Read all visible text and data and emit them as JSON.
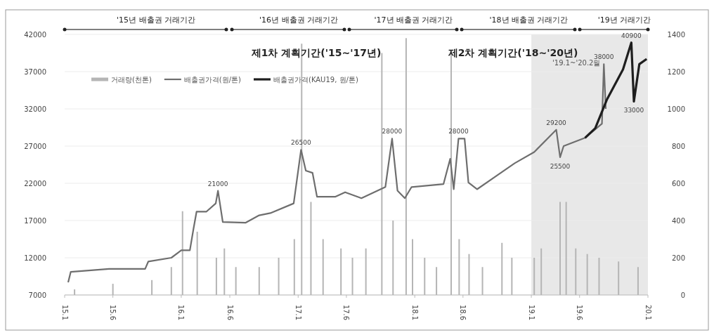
{
  "chart_data": {
    "type": "line",
    "legend": "top left",
    "grid": "y",
    "xlim": [
      "2015-01",
      "2020-01"
    ],
    "ylim": [
      7000,
      42000
    ],
    "y2lim": [
      0,
      1400
    ],
    "xticks": [
      {
        "value": "2015-01",
        "label": "15.1"
      },
      {
        "value": "2015-06",
        "label": "15.6"
      },
      {
        "value": "2016-01",
        "label": "16.1"
      },
      {
        "value": "2016-06",
        "label": "16.6"
      },
      {
        "value": "2017-01",
        "label": "17.1"
      },
      {
        "value": "2017-06",
        "label": "17.6"
      },
      {
        "value": "2018-01",
        "label": "18.1"
      },
      {
        "value": "2018-06",
        "label": "18.6"
      },
      {
        "value": "2019-01",
        "label": "19.1"
      },
      {
        "value": "2019-06",
        "label": "19.6"
      },
      {
        "value": "2020-01",
        "label": "20.1"
      }
    ],
    "yticks": [
      7000,
      12000,
      17000,
      22000,
      27000,
      32000,
      37000,
      42000
    ],
    "y2ticks": [
      0,
      200,
      400,
      600,
      800,
      1000,
      1200,
      1400
    ],
    "series": [
      {
        "name": "거래량(천톤)",
        "type": "bar",
        "axis": "y2",
        "color": "#b5b5b5",
        "x": [
          "2015-02-01",
          "2015-06-01",
          "2015-10-01",
          "2015-12-01",
          "2016-01-05",
          "2016-02-20",
          "2016-04-20",
          "2016-05-15",
          "2016-06-20",
          "2016-09-01",
          "2016-11-01",
          "2016-12-20",
          "2017-01-12",
          "2017-02-10",
          "2017-03-20",
          "2017-05-15",
          "2017-06-20",
          "2017-08-01",
          "2017-09-20",
          "2017-10-25",
          "2017-12-05",
          "2017-12-25",
          "2018-02-01",
          "2018-03-10",
          "2018-04-25",
          "2018-05-20",
          "2018-06-20",
          "2018-08-01",
          "2018-10-01",
          "2018-11-01",
          "2019-01-10",
          "2019-02-01",
          "2019-04-01",
          "2019-04-20",
          "2019-05-20",
          "2019-06-25",
          "2019-08-01",
          "2019-10-01",
          "2019-12-01"
        ],
        "values": [
          30,
          60,
          80,
          150,
          450,
          340,
          200,
          250,
          150,
          150,
          200,
          300,
          1350,
          500,
          300,
          250,
          200,
          250,
          1300,
          400,
          1380,
          300,
          200,
          150,
          1300,
          300,
          220,
          150,
          280,
          200,
          200,
          250,
          500,
          500,
          250,
          220,
          200,
          180,
          150
        ]
      },
      {
        "name": "배출권가격(원/톤)",
        "color": "#6e6e6e",
        "x": [
          "2015-01-12",
          "2015-01-20",
          "2015-05-20",
          "2015-09-10",
          "2015-09-20",
          "2015-12-01",
          "2016-01-01",
          "2016-01-28",
          "2016-02-08",
          "2016-02-18",
          "2016-03-20",
          "2016-04-18",
          "2016-04-25",
          "2016-05-10",
          "2016-07-20",
          "2016-09-01",
          "2016-10-06",
          "2016-12-18",
          "2017-01-10",
          "2017-01-25",
          "2017-02-15",
          "2017-03-01",
          "2017-04-28",
          "2017-05-28",
          "2017-07-18",
          "2017-10-01",
          "2017-10-22",
          "2017-11-08",
          "2017-12-01",
          "2017-12-22",
          "2018-04-01",
          "2018-04-22",
          "2018-05-03",
          "2018-05-18",
          "2018-06-06",
          "2018-06-18",
          "2018-07-15",
          "2018-11-10",
          "2019-01-10",
          "2019-03-20",
          "2019-04-01",
          "2019-04-12",
          "2019-06-18",
          "2019-08-10",
          "2019-08-16",
          "2019-08-22"
        ],
        "values": [
          8700,
          10100,
          10500,
          10500,
          11500,
          12000,
          13000,
          13000,
          15800,
          18200,
          18200,
          19300,
          21000,
          16800,
          16700,
          17700,
          18000,
          19300,
          26500,
          23700,
          23400,
          20200,
          20200,
          20800,
          20000,
          21500,
          28000,
          21000,
          20000,
          21500,
          21900,
          25300,
          21200,
          28000,
          28000,
          22100,
          21200,
          24700,
          26200,
          29200,
          25500,
          27000,
          28100,
          30000,
          38000,
          32000
        ]
      },
      {
        "name": "배출권가격(KAU19, 원/톤)",
        "color": "#1e1e1e",
        "x": [
          "2019-06-18",
          "2019-07-20",
          "2019-08-25",
          "2019-10-15",
          "2019-11-10",
          "2019-11-18",
          "2019-12-05",
          "2019-12-28"
        ],
        "values": [
          28100,
          29400,
          33200,
          37300,
          40900,
          33000,
          38000,
          38700
        ]
      }
    ],
    "bands": [
      {
        "axis": "x",
        "from": "2019-01-01",
        "to": "2020-01-01",
        "label": "'19.1~'20.2월",
        "color": "#e8e8e8"
      }
    ],
    "annotations": [
      "'15년 배출권 거래기간",
      "'16년 배출권 거래기간",
      "'17년 배출권 거래기간",
      "'18년 배출권 거래기간",
      "'19년 거래기간",
      "제1차 계획기간('15~'17년)",
      "제2차 계획기간('18~'20년)",
      {
        "text": "21000",
        "x": "2016-04-25",
        "y": 21000
      },
      {
        "text": "26500",
        "x": "2017-01-10",
        "y": 26500
      },
      {
        "text": "28000",
        "x": "2017-10-22",
        "y": 28000
      },
      {
        "text": "28000",
        "x": "2018-05-18",
        "y": 28000
      },
      {
        "text": "29200",
        "x": "2019-03-20",
        "y": 29200
      },
      {
        "text": "25500",
        "x": "2019-04-01",
        "y": 25500
      },
      {
        "text": "38000",
        "x": "2019-08-16",
        "y": 38000
      },
      {
        "text": "40900",
        "x": "2019-11-10",
        "y": 40900
      },
      {
        "text": "33000",
        "x": "2019-11-18",
        "y": 33000
      }
    ]
  }
}
